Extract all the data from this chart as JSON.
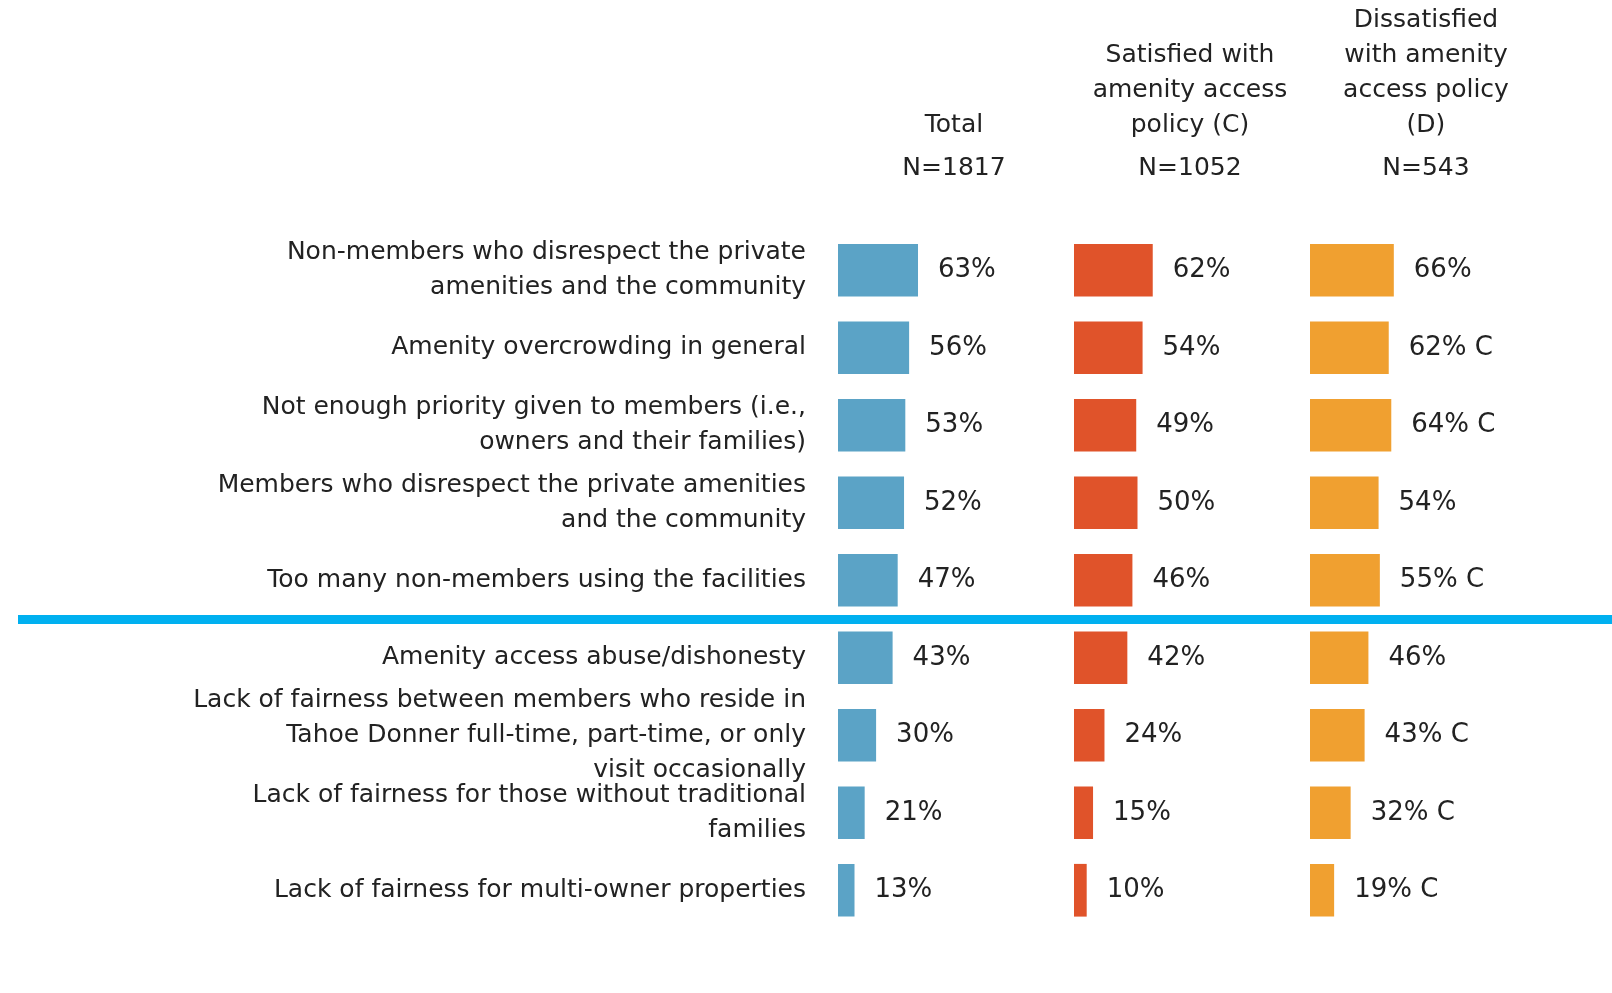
{
  "chart_data": [
    {
      "type": "bar",
      "orientation": "horizontal",
      "title": "Total",
      "subtitle": "N=1817",
      "tick_labels": "y",
      "categories": [
        "Non-members who disrespect the private amenities and the community",
        "Amenity overcrowding in general",
        "Not enough priority given to members (i.e., owners and their families)",
        "Members who disrespect the private amenities and the community",
        "Too many non-members using the facilities",
        "Amenity access abuse/dishonesty",
        "Lack of fairness between members who reside in Tahoe Donner full-time, part-time, or only visit occasionally",
        "Lack of fairness for those without traditional families",
        "Lack of fairness for multi-owner properties"
      ],
      "values": [
        63,
        56,
        53,
        52,
        47,
        43,
        30,
        21,
        13
      ],
      "value_labels": [
        "63%",
        "56%",
        "53%",
        "52%",
        "47%",
        "43%",
        "30%",
        "21%",
        "13%"
      ],
      "color": "#5ba3c6"
    },
    {
      "type": "bar",
      "orientation": "horizontal",
      "title": "Satisfied with amenity access policy (C)",
      "subtitle": "N=1052",
      "tick_labels": false,
      "categories": [
        null,
        null,
        null,
        null,
        null,
        null,
        null,
        null,
        null
      ],
      "values": [
        62,
        54,
        49,
        50,
        46,
        42,
        24,
        15,
        10
      ],
      "value_labels": [
        "62%",
        "54%",
        "49%",
        "50%",
        "46%",
        "42%",
        "24%",
        "15%",
        "10%"
      ],
      "color": "#e0532a"
    },
    {
      "type": "bar",
      "orientation": "horizontal",
      "title": "Dissatisfied with amenity access policy (D)",
      "subtitle": "N=543",
      "tick_labels": false,
      "categories": [
        null,
        null,
        null,
        null,
        null,
        null,
        null,
        null,
        null
      ],
      "values": [
        66,
        62,
        64,
        54,
        55,
        46,
        43,
        32,
        19
      ],
      "value_labels": [
        "66%",
        "62% C",
        "64% C",
        "54%",
        "55% C",
        "46%",
        "43% C",
        "32% C",
        "19% C"
      ],
      "color": "#f0a030"
    }
  ]
}
